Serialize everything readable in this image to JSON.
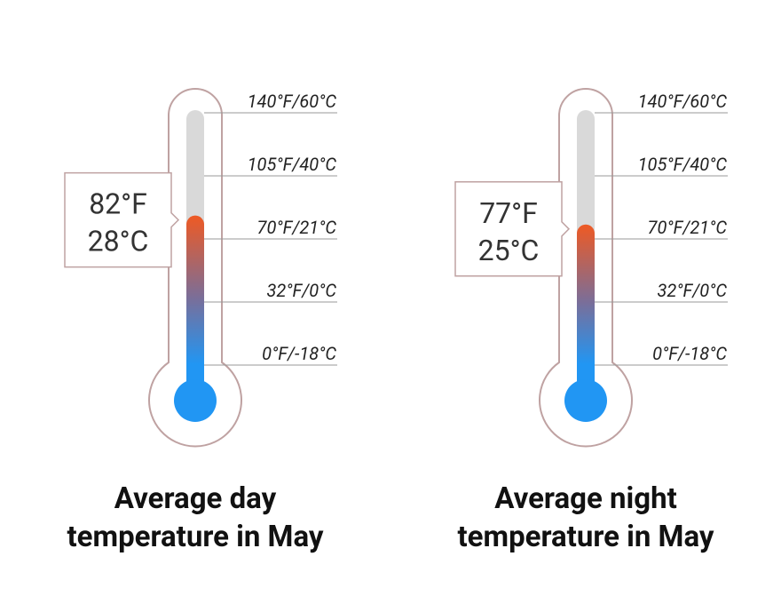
{
  "chart_data": [
    {
      "type": "thermometer",
      "title": "Average day temperature in May",
      "values": [
        82
      ],
      "value_labels": [
        "82°F"
      ],
      "secondary_value_labels": [
        "28°C"
      ],
      "ylim": [
        0,
        140
      ],
      "yticks": [
        {
          "value": 0,
          "label": "0°F/-18°C"
        },
        {
          "value": 32,
          "label": "32°F/0°C"
        },
        {
          "value": 70,
          "label": "70°F/21°C"
        },
        {
          "value": 105,
          "label": "105°F/40°C"
        },
        {
          "value": 140,
          "label": "140°F/60°C"
        }
      ],
      "colors": {
        "hot": "#ec5a26",
        "cold": "#2196f3",
        "tube": "#d9d9d9",
        "outline": "#bfa2a2"
      }
    },
    {
      "type": "thermometer",
      "title": "Average night temperature in May",
      "values": [
        77
      ],
      "value_labels": [
        "77°F"
      ],
      "secondary_value_labels": [
        "25°C"
      ],
      "ylim": [
        0,
        140
      ],
      "yticks": [
        {
          "value": 0,
          "label": "0°F/-18°C"
        },
        {
          "value": 32,
          "label": "32°F/0°C"
        },
        {
          "value": 70,
          "label": "70°F/21°C"
        },
        {
          "value": 105,
          "label": "105°F/40°C"
        },
        {
          "value": 140,
          "label": "140°F/60°C"
        }
      ],
      "colors": {
        "hot": "#ec5a26",
        "cold": "#2196f3",
        "tube": "#d9d9d9",
        "outline": "#bfa2a2"
      }
    }
  ]
}
